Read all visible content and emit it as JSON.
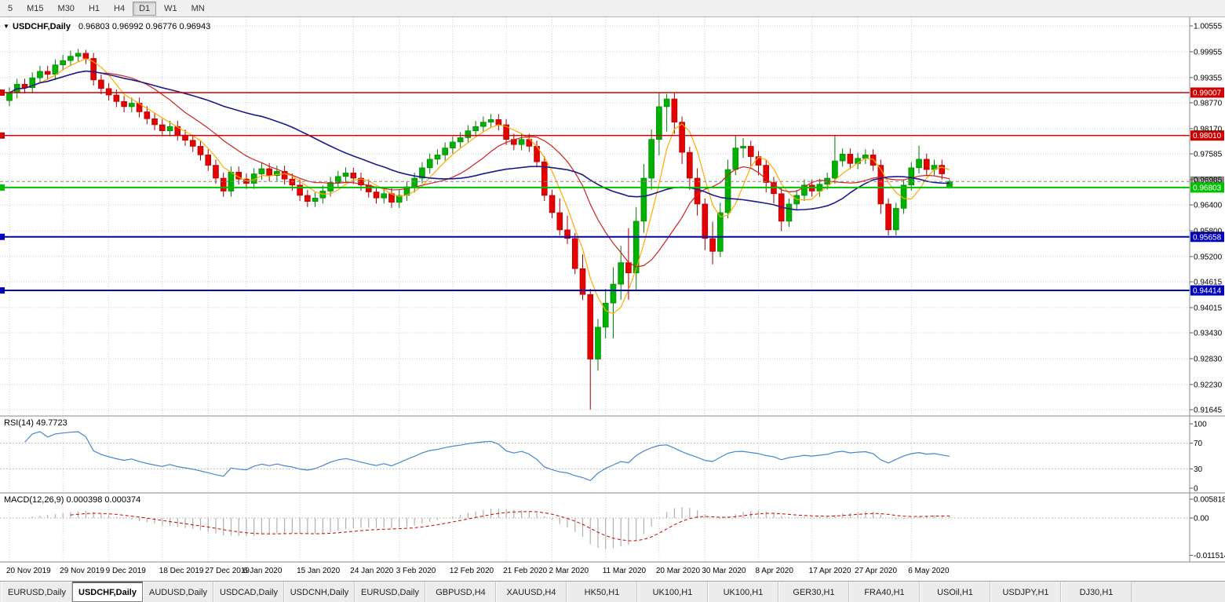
{
  "icons": {
    "collapse": "▼"
  },
  "colors": {
    "up": "#00b200",
    "up_border": "#007a00",
    "down": "#e60000",
    "down_border": "#a00000",
    "ma_fast": "#ffaa00",
    "ma_mid": "#cc2222",
    "ma_slow": "#1a1a8c",
    "rsi": "#4a86c8",
    "macd_hist": "#b0b0b0",
    "macd_signal": "#cc0000",
    "level_red": "#cc0000",
    "level_green": "#00c000",
    "level_blue": "#0000bb",
    "bid": "#888888",
    "grid": "#cfcfcf"
  },
  "window": {
    "timeframes": [
      "5",
      "M15",
      "M30",
      "H1",
      "H4",
      "D1",
      "W1",
      "MN"
    ],
    "active_timeframe": "D1"
  },
  "chart": {
    "symbol_title": "USDCHF,Daily",
    "ohlc_text": "0.96803 0.96992 0.96776 0.96943",
    "price_ticks": [
      "1.00555",
      "0.99955",
      "0.99355",
      "0.98770",
      "0.98170",
      "0.97585",
      "0.96985",
      "0.96400",
      "0.95800",
      "0.95200",
      "0.94615",
      "0.94015",
      "0.93430",
      "0.92830",
      "0.92230",
      "0.91645"
    ],
    "levels": [
      {
        "value": 0.99007,
        "label": "0.99007",
        "color_key": "level_red",
        "width": 1.5
      },
      {
        "value": 0.9801,
        "label": "0.98010",
        "color_key": "level_red",
        "width": 1.5
      },
      {
        "value": 0.96943,
        "label": "0.96943",
        "color_key": "bid",
        "width": 1,
        "dashed": true
      },
      {
        "value": 0.96803,
        "label": "0.96803",
        "color_key": "level_green",
        "width": 2
      },
      {
        "value": 0.95658,
        "label": "0.95658",
        "color_key": "level_blue",
        "width": 2
      },
      {
        "value": 0.94414,
        "label": "0.94414",
        "color_key": "level_blue",
        "width": 2
      }
    ]
  },
  "rsi_panel": {
    "label": "RSI(14) 49.7723",
    "ticks": [
      "100",
      "70",
      "30",
      "0"
    ],
    "dotted_levels": [
      70,
      30
    ]
  },
  "macd_panel": {
    "label": "MACD(12,26,9) 0.000398 0.000374",
    "ticks": [
      "0.005818",
      "0.00",
      "-0.011514"
    ]
  },
  "date_axis": {
    "labels": [
      "20 Nov 2019",
      "29 Nov 2019",
      "9 Dec 2019",
      "18 Dec 2019",
      "27 Dec 2019",
      "6 Jan 2020",
      "15 Jan 2020",
      "24 Jan 2020",
      "3 Feb 2020",
      "12 Feb 2020",
      "21 Feb 2020",
      "2 Mar 2020",
      "11 Mar 2020",
      "20 Mar 2020",
      "30 Mar 2020",
      "8 Apr 2020",
      "17 Apr 2020",
      "27 Apr 2020",
      "6 May 2020"
    ],
    "indices": [
      0,
      7,
      13,
      20,
      26,
      31,
      38,
      45,
      51,
      58,
      65,
      71,
      78,
      85,
      91,
      98,
      105,
      111,
      118
    ]
  },
  "tabs": [
    {
      "label": "EURUSD,Daily",
      "active": false
    },
    {
      "label": "USDCHF,Daily",
      "active": true
    },
    {
      "label": "AUDUSD,Daily",
      "active": false
    },
    {
      "label": "USDCAD,Daily",
      "active": false
    },
    {
      "label": "USDCNH,Daily",
      "active": false
    },
    {
      "label": "EURUSD,Daily",
      "active": false
    },
    {
      "label": "GBPUSD,H4",
      "active": false
    },
    {
      "label": "XAUUSD,H4",
      "active": false
    },
    {
      "label": "HK50,H1",
      "active": false
    },
    {
      "label": "UK100,H1",
      "active": false
    },
    {
      "label": "UK100,H1",
      "active": false
    },
    {
      "label": "GER30,H1",
      "active": false
    },
    {
      "label": "FRA40,H1",
      "active": false
    },
    {
      "label": "USOil,H1",
      "active": false
    },
    {
      "label": "USDJPY,H1",
      "active": false
    },
    {
      "label": "DJ30,H1",
      "active": false
    }
  ],
  "chart_data": {
    "type": "candlestick",
    "symbol": "USDCHF",
    "timeframe": "Daily",
    "current_ohlc": {
      "open": 0.96803,
      "high": 0.96992,
      "low": 0.96776,
      "close": 0.96943
    },
    "y_axis": {
      "min": 0.91645,
      "max": 1.00555
    },
    "horizontal_levels": [
      0.99007,
      0.9801,
      0.96803,
      0.95658,
      0.94414
    ],
    "moving_averages": [
      {
        "period": 5,
        "color_key": "ma_fast"
      },
      {
        "period": 13,
        "color_key": "ma_mid"
      },
      {
        "period": 34,
        "color_key": "ma_slow"
      }
    ],
    "indicators": [
      {
        "name": "RSI",
        "period": 14,
        "current": 49.7723
      },
      {
        "name": "MACD",
        "params": [
          12,
          26,
          9
        ],
        "current": [
          0.000398,
          0.000374
        ]
      }
    ],
    "candles": [
      [
        0.9882,
        0.9913,
        0.9869,
        0.99
      ],
      [
        0.99,
        0.9933,
        0.9887,
        0.992
      ],
      [
        0.992,
        0.9933,
        0.9899,
        0.9912
      ],
      [
        0.9912,
        0.9948,
        0.9899,
        0.9935
      ],
      [
        0.9935,
        0.9963,
        0.9922,
        0.995
      ],
      [
        0.995,
        0.9963,
        0.993,
        0.9943
      ],
      [
        0.9943,
        0.9978,
        0.993,
        0.9965
      ],
      [
        0.9965,
        0.9988,
        0.9952,
        0.9975
      ],
      [
        0.9975,
        0.9998,
        0.9962,
        0.9985
      ],
      [
        0.9985,
        1.0002,
        0.9972,
        0.9992
      ],
      [
        0.9992,
        1.0,
        0.9967,
        0.998
      ],
      [
        0.998,
        0.9993,
        0.9917,
        0.993
      ],
      [
        0.993,
        0.9943,
        0.9897,
        0.991
      ],
      [
        0.991,
        0.9923,
        0.9882,
        0.9895
      ],
      [
        0.9895,
        0.9908,
        0.9867,
        0.988
      ],
      [
        0.988,
        0.9893,
        0.9855,
        0.9868
      ],
      [
        0.9868,
        0.9889,
        0.9855,
        0.9876
      ],
      [
        0.9876,
        0.9889,
        0.9843,
        0.9856
      ],
      [
        0.9856,
        0.9869,
        0.9827,
        0.984
      ],
      [
        0.984,
        0.9853,
        0.9813,
        0.9826
      ],
      [
        0.9826,
        0.9839,
        0.9799,
        0.9812
      ],
      [
        0.9812,
        0.9835,
        0.9799,
        0.9822
      ],
      [
        0.9822,
        0.9835,
        0.9789,
        0.9802
      ],
      [
        0.9802,
        0.9815,
        0.9777,
        0.979
      ],
      [
        0.979,
        0.9803,
        0.9763,
        0.9776
      ],
      [
        0.9776,
        0.9789,
        0.9743,
        0.9756
      ],
      [
        0.9756,
        0.9769,
        0.9719,
        0.9732
      ],
      [
        0.9732,
        0.9745,
        0.9689,
        0.9702
      ],
      [
        0.9702,
        0.9715,
        0.9659,
        0.9672
      ],
      [
        0.9672,
        0.9729,
        0.9659,
        0.9716
      ],
      [
        0.9716,
        0.9729,
        0.9687,
        0.97
      ],
      [
        0.97,
        0.9713,
        0.9677,
        0.969
      ],
      [
        0.969,
        0.9725,
        0.9677,
        0.9712
      ],
      [
        0.9712,
        0.9737,
        0.9699,
        0.9724
      ],
      [
        0.9724,
        0.9737,
        0.9695,
        0.9708
      ],
      [
        0.9708,
        0.9731,
        0.9695,
        0.9718
      ],
      [
        0.9718,
        0.9731,
        0.9687,
        0.97
      ],
      [
        0.97,
        0.9713,
        0.9673,
        0.9686
      ],
      [
        0.9686,
        0.9699,
        0.9649,
        0.9662
      ],
      [
        0.9662,
        0.9675,
        0.9635,
        0.9648
      ],
      [
        0.9648,
        0.9669,
        0.9635,
        0.9656
      ],
      [
        0.9656,
        0.9685,
        0.9643,
        0.9672
      ],
      [
        0.9672,
        0.9705,
        0.9659,
        0.9692
      ],
      [
        0.9692,
        0.9719,
        0.9679,
        0.9706
      ],
      [
        0.9706,
        0.9727,
        0.9693,
        0.9714
      ],
      [
        0.9714,
        0.9727,
        0.9689,
        0.9702
      ],
      [
        0.9702,
        0.9715,
        0.9673,
        0.9686
      ],
      [
        0.9686,
        0.9699,
        0.9657,
        0.967
      ],
      [
        0.967,
        0.9683,
        0.9643,
        0.9656
      ],
      [
        0.9656,
        0.9679,
        0.9643,
        0.9666
      ],
      [
        0.9666,
        0.9679,
        0.9633,
        0.9646
      ],
      [
        0.9646,
        0.9675,
        0.9633,
        0.9662
      ],
      [
        0.9662,
        0.9695,
        0.9649,
        0.9682
      ],
      [
        0.9682,
        0.9715,
        0.9669,
        0.9702
      ],
      [
        0.9702,
        0.9739,
        0.9689,
        0.9726
      ],
      [
        0.9726,
        0.9759,
        0.9713,
        0.9746
      ],
      [
        0.9746,
        0.9769,
        0.9733,
        0.9756
      ],
      [
        0.9756,
        0.9785,
        0.9743,
        0.9772
      ],
      [
        0.9772,
        0.9799,
        0.9759,
        0.9786
      ],
      [
        0.9786,
        0.9809,
        0.9773,
        0.9796
      ],
      [
        0.9796,
        0.9825,
        0.9783,
        0.9812
      ],
      [
        0.9812,
        0.9835,
        0.9799,
        0.9822
      ],
      [
        0.9822,
        0.9845,
        0.9809,
        0.9832
      ],
      [
        0.9832,
        0.9851,
        0.9819,
        0.9838
      ],
      [
        0.9838,
        0.9851,
        0.9813,
        0.9826
      ],
      [
        0.9826,
        0.9839,
        0.9779,
        0.9792
      ],
      [
        0.9792,
        0.9805,
        0.9767,
        0.978
      ],
      [
        0.978,
        0.9805,
        0.9767,
        0.9792
      ],
      [
        0.9792,
        0.9805,
        0.9763,
        0.9776
      ],
      [
        0.9776,
        0.9789,
        0.9727,
        0.974
      ],
      [
        0.974,
        0.9753,
        0.9649,
        0.9662
      ],
      [
        0.9662,
        0.9675,
        0.9609,
        0.9622
      ],
      [
        0.9622,
        0.9655,
        0.9569,
        0.9582
      ],
      [
        0.9582,
        0.9615,
        0.9549,
        0.9562
      ],
      [
        0.9562,
        0.9575,
        0.9479,
        0.9492
      ],
      [
        0.9492,
        0.9525,
        0.9419,
        0.9432
      ],
      [
        0.9432,
        0.9445,
        0.9165,
        0.9282
      ],
      [
        0.9282,
        0.9375,
        0.9255,
        0.9356
      ],
      [
        0.9356,
        0.9445,
        0.933,
        0.9412
      ],
      [
        0.9412,
        0.9495,
        0.933,
        0.9456
      ],
      [
        0.9456,
        0.9545,
        0.942,
        0.9506
      ],
      [
        0.9506,
        0.9586,
        0.942,
        0.9482
      ],
      [
        0.9482,
        0.9635,
        0.944,
        0.9602
      ],
      [
        0.9602,
        0.9735,
        0.9575,
        0.9702
      ],
      [
        0.9702,
        0.9815,
        0.9675,
        0.9792
      ],
      [
        0.9792,
        0.99,
        0.9755,
        0.9868
      ],
      [
        0.9868,
        0.9898,
        0.981,
        0.9886
      ],
      [
        0.9886,
        0.9899,
        0.9805,
        0.9832
      ],
      [
        0.9832,
        0.9845,
        0.9735,
        0.9762
      ],
      [
        0.9762,
        0.9775,
        0.9675,
        0.9702
      ],
      [
        0.9702,
        0.9725,
        0.9615,
        0.9642
      ],
      [
        0.9642,
        0.9655,
        0.9535,
        0.9562
      ],
      [
        0.9562,
        0.9601,
        0.9502,
        0.9532
      ],
      [
        0.9532,
        0.9645,
        0.9519,
        0.9622
      ],
      [
        0.9622,
        0.9745,
        0.9609,
        0.9722
      ],
      [
        0.9722,
        0.98,
        0.9709,
        0.9772
      ],
      [
        0.9772,
        0.9795,
        0.9749,
        0.9776
      ],
      [
        0.9776,
        0.9789,
        0.9729,
        0.9752
      ],
      [
        0.9752,
        0.9765,
        0.9709,
        0.9732
      ],
      [
        0.9732,
        0.9745,
        0.9669,
        0.9692
      ],
      [
        0.9692,
        0.9705,
        0.9643,
        0.9666
      ],
      [
        0.9666,
        0.9679,
        0.9579,
        0.9602
      ],
      [
        0.9602,
        0.9655,
        0.9589,
        0.9642
      ],
      [
        0.9642,
        0.9675,
        0.9629,
        0.9662
      ],
      [
        0.9662,
        0.9699,
        0.9649,
        0.9686
      ],
      [
        0.9686,
        0.9699,
        0.9659,
        0.9672
      ],
      [
        0.9672,
        0.9701,
        0.9659,
        0.9688
      ],
      [
        0.9688,
        0.9715,
        0.9675,
        0.9702
      ],
      [
        0.9702,
        0.98,
        0.9689,
        0.9742
      ],
      [
        0.9742,
        0.9771,
        0.9729,
        0.9758
      ],
      [
        0.9758,
        0.9771,
        0.9723,
        0.9736
      ],
      [
        0.9736,
        0.9761,
        0.9723,
        0.9748
      ],
      [
        0.9748,
        0.9769,
        0.9735,
        0.9756
      ],
      [
        0.9756,
        0.9769,
        0.9719,
        0.9732
      ],
      [
        0.9732,
        0.9745,
        0.9619,
        0.9642
      ],
      [
        0.9642,
        0.9655,
        0.9569,
        0.9582
      ],
      [
        0.9582,
        0.9645,
        0.9569,
        0.9632
      ],
      [
        0.9632,
        0.9699,
        0.9619,
        0.9686
      ],
      [
        0.9686,
        0.9739,
        0.9673,
        0.9726
      ],
      [
        0.9726,
        0.9778,
        0.9713,
        0.9746
      ],
      [
        0.9746,
        0.9759,
        0.9709,
        0.9722
      ],
      [
        0.9722,
        0.9745,
        0.9709,
        0.9732
      ],
      [
        0.9732,
        0.9745,
        0.9699,
        0.9712
      ],
      [
        0.96803,
        0.96992,
        0.96776,
        0.96943
      ]
    ]
  }
}
